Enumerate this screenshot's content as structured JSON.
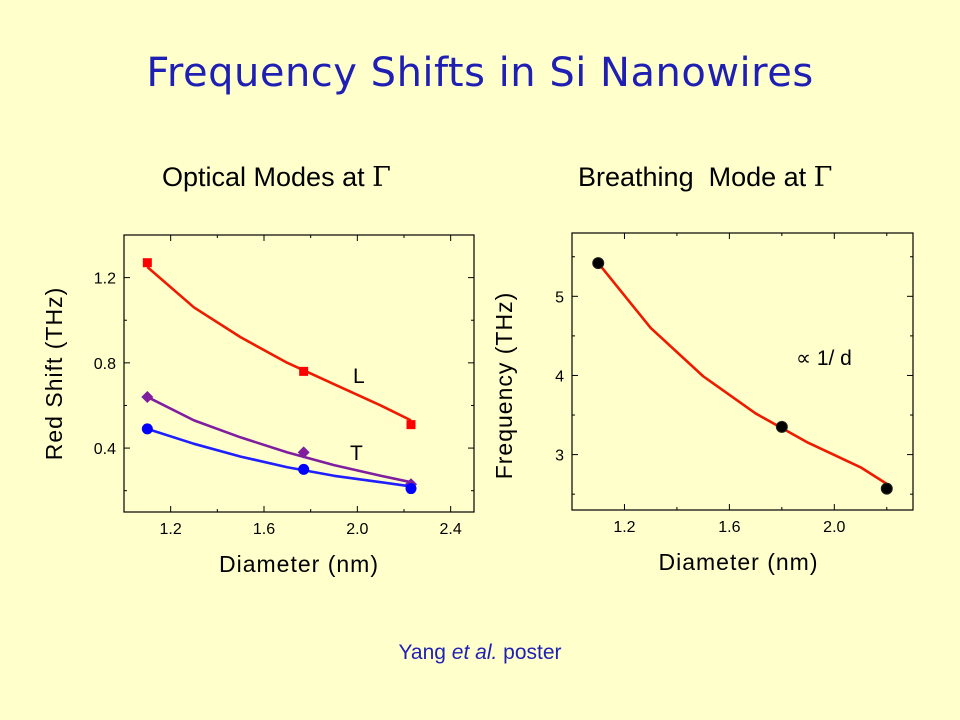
{
  "title": "Frequency Shifts in Si Nanowires",
  "credit": {
    "author": "Yang",
    "etal": "et al.",
    "rest": "poster"
  },
  "chart_data": [
    {
      "type": "scatter",
      "title": "Optical Modes at Γ",
      "title_prefix": "Optical Modes at",
      "title_symbol": "Γ",
      "xlabel": "Diameter (nm)",
      "ylabel": "Red Shift (THz)",
      "xlim": [
        1.0,
        2.5
      ],
      "ylim": [
        0.1,
        1.4
      ],
      "xticks": [
        1.2,
        1.6,
        2.0,
        2.4
      ],
      "xtick_labels": [
        "1.2",
        "1.6",
        "2.0",
        "2.4"
      ],
      "yticks": [
        0.4,
        0.8,
        1.2
      ],
      "ytick_labels": [
        "0.4",
        "0.8",
        "1.2"
      ],
      "grid": false,
      "annotations": [
        "L",
        "T"
      ],
      "series": [
        {
          "name": "L",
          "color": "#ff0000",
          "marker": "square",
          "x": [
            1.1,
            1.77,
            2.23
          ],
          "y": [
            1.27,
            0.76,
            0.51
          ],
          "fit": {
            "x": [
              1.1,
              1.3,
              1.5,
              1.7,
              1.9,
              2.1,
              2.23
            ],
            "y": [
              1.25,
              1.06,
              0.92,
              0.8,
              0.7,
              0.6,
              0.53
            ]
          }
        },
        {
          "color": "#7f1f9f",
          "marker": "diamond",
          "x": [
            1.1,
            1.77,
            2.23
          ],
          "y": [
            0.64,
            0.38,
            0.23
          ],
          "fit": {
            "x": [
              1.1,
              1.3,
              1.5,
              1.7,
              1.9,
              2.1,
              2.23
            ],
            "y": [
              0.64,
              0.53,
              0.45,
              0.38,
              0.32,
              0.27,
              0.24
            ]
          }
        },
        {
          "color": "#0000ff",
          "marker": "circle",
          "x": [
            1.1,
            1.77,
            2.23
          ],
          "y": [
            0.49,
            0.3,
            0.21
          ],
          "fit": {
            "x": [
              1.1,
              1.3,
              1.5,
              1.7,
              1.9,
              2.1,
              2.23
            ],
            "y": [
              0.49,
              0.42,
              0.36,
              0.31,
              0.27,
              0.24,
              0.22
            ]
          }
        }
      ]
    },
    {
      "type": "scatter",
      "title": "Breathing  Mode at Γ",
      "title_prefix": "Breathing  Mode at",
      "title_symbol": "Γ",
      "xlabel": "Diameter (nm)",
      "ylabel": "Frequency (THz)",
      "xlim": [
        1.0,
        2.3
      ],
      "ylim": [
        2.3,
        5.8
      ],
      "xticks": [
        1.2,
        1.6,
        2.0
      ],
      "xtick_labels": [
        "1.2",
        "1.6",
        "2.0"
      ],
      "yticks": [
        3,
        4,
        5
      ],
      "ytick_labels": [
        "3",
        "4",
        "5"
      ],
      "grid": false,
      "annotations": [
        "∝ 1/ d"
      ],
      "series": [
        {
          "color": "#000000",
          "marker": "circle",
          "x": [
            1.1,
            1.8,
            2.2
          ],
          "y": [
            5.42,
            3.35,
            2.57
          ],
          "fit": {
            "x": [
              1.1,
              1.3,
              1.5,
              1.7,
              1.9,
              2.1,
              2.2
            ],
            "y": [
              5.42,
              4.6,
              3.99,
              3.52,
              3.15,
              2.84,
              2.63
            ]
          }
        }
      ]
    }
  ]
}
